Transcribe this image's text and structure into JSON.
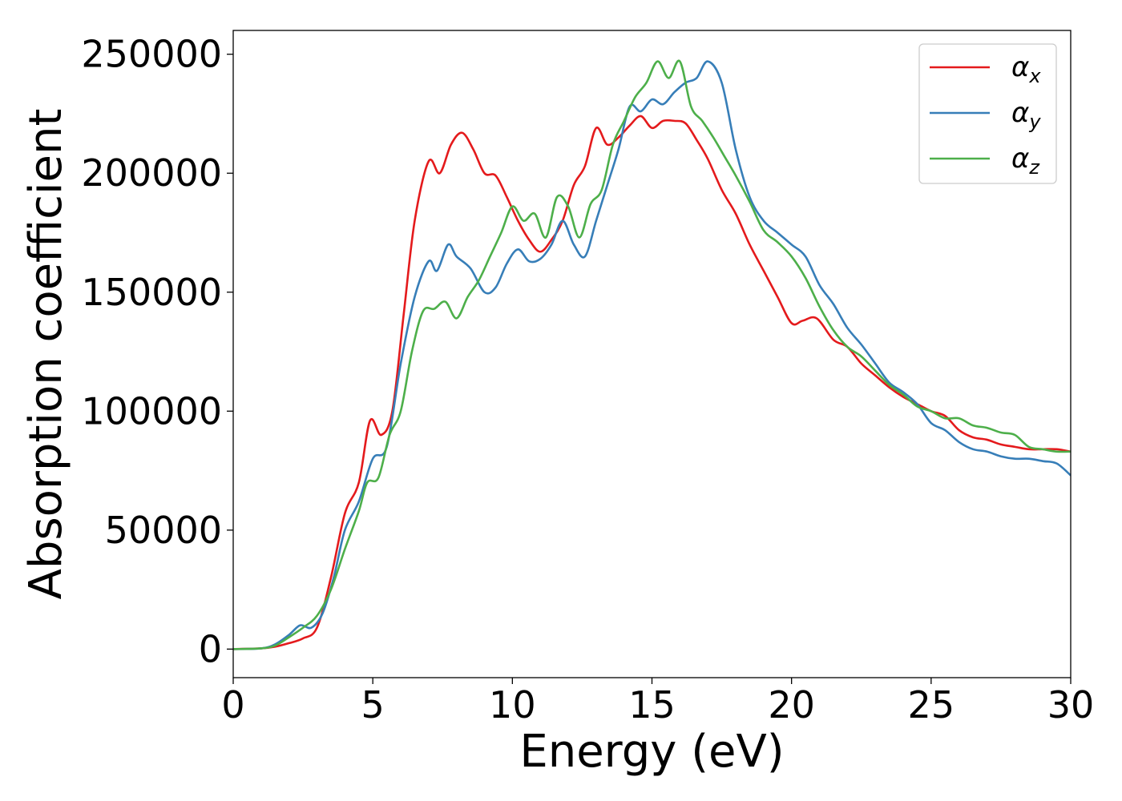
{
  "chart_data": {
    "type": "line",
    "title": "",
    "xlabel": "Energy (eV)",
    "ylabel": "Absorption coefficient",
    "xlim": [
      0,
      30
    ],
    "ylim": [
      -12000,
      260000
    ],
    "x_ticks": [
      0,
      5,
      10,
      15,
      20,
      25,
      30
    ],
    "x_tick_labels": [
      "0",
      "5",
      "10",
      "15",
      "20",
      "25",
      "30"
    ],
    "y_ticks": [
      0,
      50000,
      100000,
      150000,
      200000,
      250000
    ],
    "y_tick_labels": [
      "0",
      "50000",
      "100000",
      "150000",
      "200000",
      "250000"
    ],
    "grid": false,
    "legend_position": "top-right",
    "series": [
      {
        "name": "α_x",
        "legend_base": "α",
        "legend_sub": "x",
        "color": "#e41a1c",
        "x": [
          0,
          1,
          1.5,
          2,
          2.5,
          3,
          3.5,
          4,
          4.5,
          4.9,
          5.3,
          5.7,
          6.1,
          6.5,
          7,
          7.4,
          7.8,
          8.2,
          8.6,
          9.0,
          9.4,
          9.8,
          10.2,
          10.6,
          11.0,
          11.4,
          11.8,
          12.2,
          12.6,
          13.0,
          13.4,
          13.8,
          14.2,
          14.6,
          15.0,
          15.4,
          15.8,
          16.2,
          16.6,
          17.0,
          17.5,
          18.0,
          18.5,
          19.0,
          19.5,
          20.0,
          20.4,
          20.9,
          21.5,
          22.0,
          22.5,
          23.0,
          23.5,
          24.0,
          24.5,
          25.0,
          25.5,
          26.0,
          26.5,
          27.0,
          27.5,
          28.0,
          28.5,
          29.0,
          29.5,
          30.0
        ],
        "y": [
          0,
          300,
          1000,
          2500,
          4500,
          9000,
          30000,
          57000,
          70000,
          96000,
          90000,
          100000,
          140000,
          180000,
          205000,
          200000,
          212000,
          217000,
          210000,
          200000,
          199000,
          190000,
          180000,
          172000,
          167000,
          172000,
          180000,
          195000,
          203000,
          219000,
          212000,
          215000,
          220000,
          224000,
          219000,
          222000,
          222000,
          221000,
          214000,
          206000,
          193000,
          183000,
          170000,
          159000,
          148000,
          137000,
          138000,
          139000,
          130000,
          127000,
          120000,
          115000,
          110000,
          106000,
          103000,
          100000,
          98000,
          92000,
          89000,
          88000,
          86000,
          85000,
          84000,
          84000,
          84000,
          83000
        ]
      },
      {
        "name": "α_y",
        "legend_base": "α",
        "legend_sub": "y",
        "color": "#377eb8",
        "x": [
          0,
          1,
          1.5,
          2,
          2.4,
          2.8,
          3.2,
          3.6,
          4.0,
          4.5,
          5.0,
          5.5,
          6.0,
          6.5,
          7.0,
          7.3,
          7.7,
          8.0,
          8.5,
          9.0,
          9.4,
          9.8,
          10.2,
          10.6,
          11.0,
          11.4,
          11.8,
          12.2,
          12.6,
          13.0,
          13.4,
          13.8,
          14.2,
          14.6,
          15.0,
          15.4,
          15.8,
          16.2,
          16.6,
          17.0,
          17.5,
          18.0,
          18.5,
          19.0,
          19.5,
          20.0,
          20.5,
          21.0,
          21.5,
          22.0,
          22.5,
          23.0,
          23.5,
          24.0,
          24.5,
          25.0,
          25.5,
          26.0,
          26.5,
          27.0,
          27.5,
          28.0,
          28.5,
          29.0,
          29.5,
          30.0
        ],
        "y": [
          0,
          300,
          2000,
          6000,
          10000,
          9000,
          15000,
          30000,
          50000,
          62000,
          80000,
          85000,
          120000,
          148000,
          163000,
          159000,
          170000,
          165000,
          160000,
          150000,
          152000,
          162000,
          168000,
          163000,
          164000,
          170000,
          180000,
          170000,
          165000,
          180000,
          195000,
          210000,
          228000,
          226000,
          231000,
          229000,
          234000,
          238000,
          240000,
          247000,
          238000,
          210000,
          190000,
          180000,
          175000,
          170000,
          165000,
          153000,
          145000,
          135000,
          128000,
          120000,
          112000,
          108000,
          103000,
          95000,
          92000,
          87000,
          84000,
          83000,
          81000,
          80000,
          80000,
          79000,
          78000,
          73000
        ]
      },
      {
        "name": "α_z",
        "legend_base": "α",
        "legend_sub": "z",
        "color": "#4daf4a",
        "x": [
          0,
          1,
          1.5,
          2,
          2.5,
          3,
          3.5,
          4,
          4.5,
          4.8,
          5.2,
          5.6,
          6.0,
          6.4,
          6.8,
          7.2,
          7.6,
          8.0,
          8.4,
          8.8,
          9.2,
          9.6,
          10.0,
          10.4,
          10.8,
          11.2,
          11.6,
          12.0,
          12.4,
          12.8,
          13.2,
          13.6,
          14.0,
          14.4,
          14.8,
          15.2,
          15.6,
          16.0,
          16.4,
          16.8,
          17.2,
          17.6,
          18.0,
          18.5,
          19.0,
          19.5,
          20.0,
          20.5,
          21.0,
          21.5,
          22.0,
          22.5,
          23.0,
          23.5,
          24.0,
          24.5,
          25.0,
          25.5,
          26.0,
          26.5,
          27.0,
          27.5,
          28.0,
          28.5,
          29.0,
          29.5,
          30.0
        ],
        "y": [
          0,
          300,
          1500,
          5000,
          9000,
          14000,
          25000,
          42000,
          58000,
          70000,
          72000,
          90000,
          100000,
          125000,
          142000,
          143000,
          146000,
          139000,
          148000,
          155000,
          165000,
          175000,
          186000,
          180000,
          183000,
          173000,
          190000,
          186000,
          173000,
          187000,
          193000,
          212000,
          222000,
          232000,
          238000,
          247000,
          240000,
          247000,
          228000,
          222000,
          215000,
          207000,
          199000,
          188000,
          176000,
          171000,
          165000,
          156000,
          144000,
          134000,
          127000,
          123000,
          117000,
          111000,
          107000,
          102000,
          100000,
          97000,
          97000,
          94000,
          93000,
          91000,
          90000,
          85000,
          84000,
          83000,
          83000
        ]
      }
    ]
  }
}
